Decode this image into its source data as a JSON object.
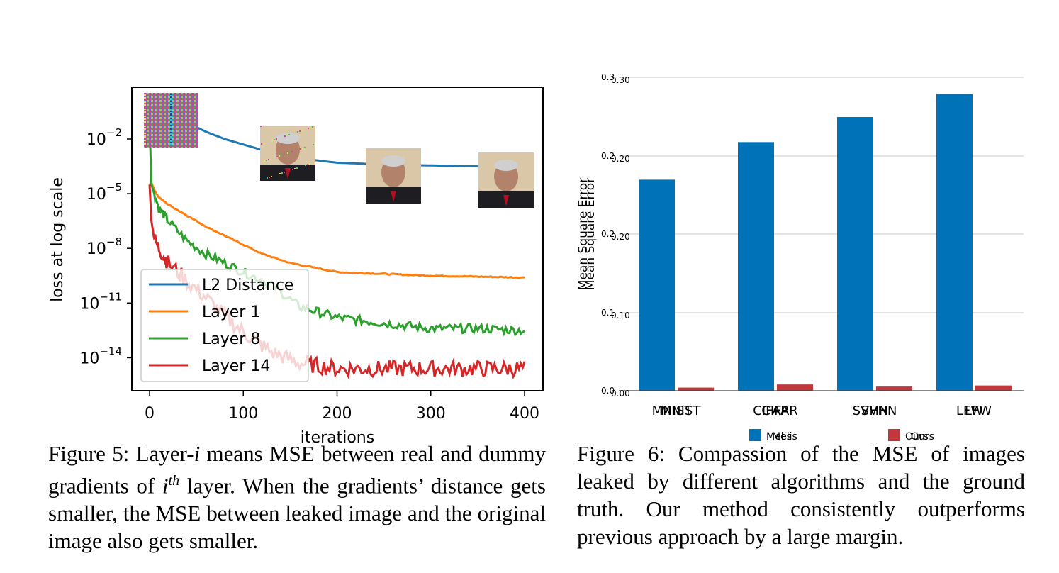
{
  "figure5": {
    "caption_prefix": "Figure 5: Layer-",
    "caption_var": "i",
    "caption_mid": " means MSE between real and dummy gradients of ",
    "caption_sup_base": "i",
    "caption_sup": "th",
    "caption_end": " layer. When the gradients’ distance gets smaller, the MSE between leaked image and the original image also gets smaller."
  },
  "figure6": {
    "caption": "Figure 6: Compassion of the MSE of images leaked by different algorithms and the ground truth. Our method consistently outperforms previous approach by a large margin."
  },
  "chart_data": [
    {
      "type": "line",
      "title": "",
      "xlabel": "iterations",
      "ylabel": "loss at log scale",
      "xlim": [
        -20,
        420
      ],
      "ylim_log10": [
        -15.9,
        1.2
      ],
      "yscale": "log",
      "x_ticks": [
        "0",
        "100",
        "200",
        "300",
        "400"
      ],
      "y_ticks": [
        {
          "base": "10",
          "exp": "−2"
        },
        {
          "base": "10",
          "exp": "−5"
        },
        {
          "base": "10",
          "exp": "−8"
        },
        {
          "base": "10",
          "exp": "−11"
        },
        {
          "base": "10",
          "exp": "−14"
        }
      ],
      "legend_position": "lower-left",
      "colors": {
        "L2 Distance": "#1f77b4",
        "Layer 1": "#ff7f0e",
        "Layer 8": "#2ca02c",
        "Layer 14": "#d62728"
      },
      "series": [
        {
          "name": "L2 Distance",
          "x": [
            0,
            20,
            40,
            60,
            80,
            100,
            120,
            150,
            200,
            250,
            300,
            350,
            400
          ],
          "log10_y": [
            -0.5,
            -0.7,
            -1.1,
            -1.6,
            -2.0,
            -2.3,
            -2.6,
            -3.0,
            -3.3,
            -3.4,
            -3.45,
            -3.5,
            -3.5
          ]
        },
        {
          "name": "Layer 1",
          "x": [
            0,
            2,
            5,
            10,
            20,
            40,
            60,
            80,
            100,
            120,
            150,
            200,
            250,
            300,
            350,
            400
          ],
          "log10_y": [
            -4.5,
            -4.4,
            -4.8,
            -5.2,
            -5.6,
            -6.2,
            -6.8,
            -7.3,
            -7.8,
            -8.3,
            -8.8,
            -9.3,
            -9.4,
            -9.5,
            -9.55,
            -9.6
          ]
        },
        {
          "name": "Layer 8",
          "x": [
            0,
            2,
            5,
            10,
            20,
            40,
            60,
            80,
            100,
            130,
            160,
            200,
            250,
            300,
            350,
            400
          ],
          "log10_y": [
            -1.0,
            -4.5,
            -5.0,
            -5.8,
            -6.5,
            -7.6,
            -8.3,
            -8.8,
            -9.3,
            -10.0,
            -11.2,
            -11.8,
            -12.1,
            -12.4,
            -12.4,
            -12.5
          ]
        },
        {
          "name": "Layer 14",
          "x": [
            0,
            2,
            5,
            10,
            20,
            40,
            60,
            80,
            100,
            130,
            160,
            200,
            250,
            300,
            350,
            400
          ],
          "log10_y": [
            -4.5,
            -6.5,
            -7.5,
            -8.0,
            -8.8,
            -9.8,
            -10.7,
            -11.7,
            -12.6,
            -13.7,
            -14.3,
            -14.6,
            -14.6,
            -14.6,
            -14.6,
            -14.6
          ]
        }
      ],
      "inset_images": [
        "noise-image",
        "reconstruction-early",
        "reconstruction-mid",
        "reconstruction-final"
      ]
    },
    {
      "type": "bar",
      "title": "",
      "xlabel": "",
      "ylabel": "Mean Square Error",
      "ylim": [
        0,
        0.3
      ],
      "y_ticks": [
        "0.0",
        "0.1",
        "0.2",
        "0.2",
        "0.3"
      ],
      "y_ticks_overlay": [
        "0.00",
        "0.10",
        "0.20",
        "0.20",
        "0.30"
      ],
      "categories": [
        "MNIST",
        "CIFAR",
        "SVHN",
        "LFW"
      ],
      "series": [
        {
          "name": "Melis",
          "color": "#0072b8",
          "values": [
            0.202,
            0.238,
            0.262,
            0.284
          ]
        },
        {
          "name": "Ours",
          "color": "#c0373c",
          "values": [
            0.003,
            0.006,
            0.004,
            0.005
          ]
        }
      ],
      "legend_position": "bottom-center",
      "grid": true
    }
  ]
}
